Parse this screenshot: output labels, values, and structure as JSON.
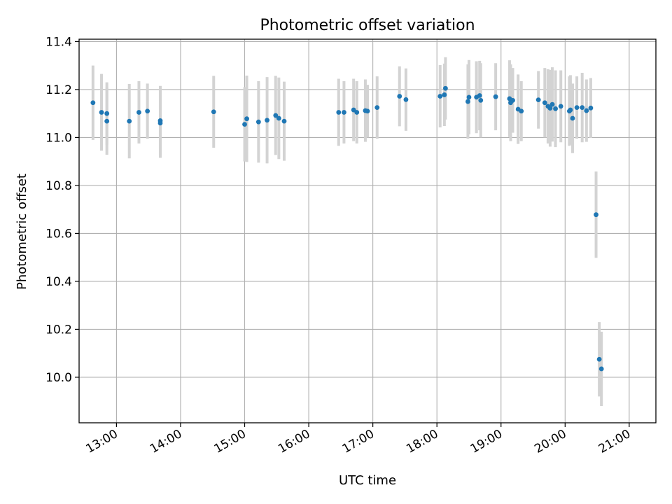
{
  "chart_data": {
    "type": "scatter",
    "title": "Photometric offset variation",
    "xlabel": "UTC time",
    "ylabel": "Photometric offset",
    "grid": true,
    "xlim": [
      "12:25",
      "21:25"
    ],
    "ylim": [
      9.81,
      11.41
    ],
    "x_ticks": [
      "13:00",
      "14:00",
      "15:00",
      "16:00",
      "17:00",
      "18:00",
      "19:00",
      "20:00",
      "21:00"
    ],
    "y_ticks": [
      "10.0",
      "10.2",
      "10.4",
      "10.6",
      "10.8",
      "11.0",
      "11.2",
      "11.4"
    ],
    "point_color": "#1f77b4",
    "errorbar_color": "#d3d3d3",
    "series": [
      {
        "x": [
          "12:38",
          "12:46",
          "12:51",
          "12:51",
          "13:12",
          "13:21",
          "13:29",
          "13:41",
          "13:41",
          "14:31",
          "15:00",
          "15:02",
          "15:13",
          "15:21",
          "15:29",
          "15:32",
          "15:37",
          "16:28",
          "16:33",
          "16:42",
          "16:45",
          "16:53",
          "16:55",
          "17:04",
          "17:25",
          "17:31",
          "18:03",
          "18:07",
          "18:08",
          "18:29",
          "18:30",
          "18:37",
          "18:40",
          "18:41",
          "18:55",
          "19:08",
          "19:09",
          "19:11",
          "19:16",
          "19:19",
          "19:35",
          "19:41",
          "19:44",
          "19:46",
          "19:48",
          "19:51",
          "19:56",
          "20:04",
          "20:05",
          "20:07",
          "20:11",
          "20:16",
          "20:20",
          "20:24",
          "20:29",
          "20:32"
        ],
        "y": [
          11.145,
          11.105,
          11.068,
          11.1,
          11.068,
          11.105,
          11.11,
          11.07,
          11.06,
          11.107,
          11.055,
          11.078,
          11.065,
          11.072,
          11.092,
          11.08,
          11.068,
          11.105,
          11.105,
          11.115,
          11.105,
          11.112,
          11.11,
          11.125,
          11.172,
          11.158,
          11.172,
          11.178,
          11.205,
          11.15,
          11.168,
          11.168,
          11.175,
          11.155,
          11.17,
          11.162,
          11.145,
          11.155,
          11.118,
          11.11,
          11.157,
          11.145,
          11.13,
          11.122,
          11.138,
          11.12,
          11.13,
          11.11,
          11.115,
          11.08,
          11.125,
          11.125,
          11.112,
          11.123,
          10.678,
          10.075
        ],
        "err": [
          0.155,
          0.16,
          0.14,
          0.13,
          0.155,
          0.13,
          0.115,
          0.145,
          0.145,
          0.15,
          0.155,
          0.18,
          0.17,
          0.18,
          0.165,
          0.17,
          0.165,
          0.14,
          0.13,
          0.13,
          0.13,
          0.13,
          0.11,
          0.13,
          0.125,
          0.13,
          0.13,
          0.13,
          0.13,
          0.155,
          0.155,
          0.15,
          0.145,
          0.155,
          0.14,
          0.16,
          0.16,
          0.135,
          0.145,
          0.125,
          0.12,
          0.145,
          0.155,
          0.16,
          0.155,
          0.16,
          0.15,
          0.145,
          0.145,
          0.145,
          0.13,
          0.145,
          0.13,
          0.125,
          0.18,
          0.155
        ]
      }
    ],
    "extra_points": [
      {
        "x": "20:34",
        "y": 10.035,
        "err": 0.155
      }
    ]
  }
}
